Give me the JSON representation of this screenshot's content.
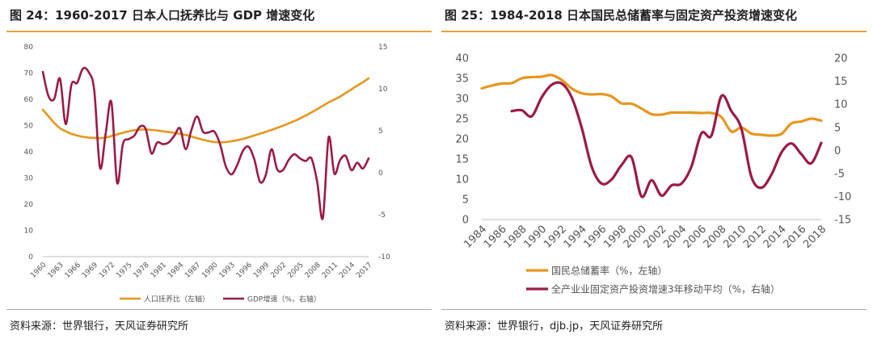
{
  "chart1": {
    "title": "图 24：1960-2017 日本人口抚养比与 GDP 增速变化",
    "source": "资料来源：世界银行，天风证券研究所",
    "chart_data": {
      "type": "line",
      "x": [
        1960,
        1961,
        1962,
        1963,
        1964,
        1965,
        1966,
        1967,
        1968,
        1969,
        1970,
        1971,
        1972,
        1973,
        1974,
        1975,
        1976,
        1977,
        1978,
        1979,
        1980,
        1981,
        1982,
        1983,
        1984,
        1985,
        1986,
        1987,
        1988,
        1989,
        1990,
        1991,
        1992,
        1993,
        1994,
        1995,
        1996,
        1997,
        1998,
        1999,
        2000,
        2001,
        2002,
        2003,
        2004,
        2005,
        2006,
        2007,
        2008,
        2009,
        2010,
        2011,
        2012,
        2013,
        2014,
        2015,
        2016,
        2017
      ],
      "x_tick_labels": [
        "1960",
        "1963",
        "1966",
        "1969",
        "1972",
        "1975",
        "1978",
        "1981",
        "1984",
        "1987",
        "1990",
        "1993",
        "1996",
        "1999",
        "2002",
        "2005",
        "2008",
        "2011",
        "2014",
        "2017"
      ],
      "series": [
        {
          "name": "人口抚养比（左轴）",
          "axis": "left",
          "color": "#e8961e",
          "values": [
            56,
            53.5,
            51,
            49,
            47.8,
            46.8,
            46.2,
            45.7,
            45.4,
            45.3,
            45.2,
            45.4,
            46,
            46.6,
            47.2,
            47.8,
            48.2,
            48.4,
            48.5,
            48.3,
            48.1,
            47.8,
            47.5,
            47.2,
            46.8,
            46.4,
            45.8,
            45.2,
            44.6,
            44.1,
            43.7,
            43.6,
            43.7,
            44,
            44.4,
            44.9,
            45.5,
            46.2,
            46.9,
            47.6,
            48.3,
            49.1,
            49.9,
            50.8,
            51.7,
            52.7,
            53.8,
            55,
            56.2,
            57.5,
            58.8,
            59.9,
            61,
            62.4,
            63.8,
            65.2,
            66.5,
            68
          ]
        },
        {
          "name": "GDP增速（%，右轴）",
          "axis": "right",
          "color": "#9b1b45",
          "values": [
            12,
            9.1,
            8.8,
            11.2,
            5.8,
            10.5,
            10.7,
            12.4,
            12,
            9.8,
            0.6,
            4.7,
            8.4,
            -1.2,
            3.4,
            4,
            4.4,
            5.5,
            5.2,
            2.3,
            3.6,
            3.4,
            3.6,
            4.4,
            5.3,
            2.8,
            5.1,
            6.7,
            4.9,
            4.8,
            4.9,
            3.4,
            0.8,
            -0.2,
            0.9,
            2.6,
            3.1,
            1.6,
            -1.1,
            -0.3,
            2.8,
            0.4,
            0.3,
            1.5,
            2.2,
            1.7,
            1.4,
            1.7,
            -1.1,
            -5.4,
            4.2,
            -0.1,
            1.5,
            2,
            0.3,
            1.2,
            0.5,
            1.7
          ]
        }
      ],
      "y_left": {
        "min": 0,
        "max": 80,
        "ticks": [
          0,
          10,
          20,
          30,
          40,
          50,
          60,
          70,
          80
        ]
      },
      "y_right": {
        "min": -10,
        "max": 15,
        "ticks": [
          -10,
          -5,
          0,
          5,
          10,
          15
        ]
      },
      "legend_placement": "bottom-center"
    }
  },
  "chart2": {
    "title": "图 25：1984-2018 日本国民总储蓄率与固定资产投资增速变化",
    "source": "资料来源：世界银行，djb.jp，天风证券研究所",
    "chart_data": {
      "type": "line",
      "x": [
        1984,
        1985,
        1986,
        1987,
        1988,
        1989,
        1990,
        1991,
        1992,
        1993,
        1994,
        1995,
        1996,
        1997,
        1998,
        1999,
        2000,
        2001,
        2002,
        2003,
        2004,
        2005,
        2006,
        2007,
        2008,
        2009,
        2010,
        2011,
        2012,
        2013,
        2014,
        2015,
        2016,
        2017,
        2018
      ],
      "x_tick_labels": [
        "1984",
        "1986",
        "1988",
        "1990",
        "1992",
        "1994",
        "1996",
        "1998",
        "2000",
        "2002",
        "2004",
        "2006",
        "2008",
        "2010",
        "2012",
        "2014",
        "2016",
        "2018"
      ],
      "series": [
        {
          "name": "国民总储蓄率（%，左轴）",
          "axis": "left",
          "color": "#e8961e",
          "values": [
            32.5,
            33.2,
            33.7,
            33.8,
            35,
            35.3,
            35.4,
            35.8,
            34.6,
            32.5,
            31.3,
            31,
            31.1,
            30.5,
            28.8,
            28.7,
            27.5,
            26.1,
            26,
            26.5,
            26.5,
            26.5,
            26.4,
            26.4,
            25.4,
            21.8,
            22.8,
            21.3,
            21,
            20.8,
            21.2,
            23.8,
            24.3,
            25,
            24.5
          ]
        },
        {
          "name": "全产业业固定资产投资增速3年移动平均（%，右轴）",
          "axis": "right",
          "color": "#9b1b45",
          "values": [
            null,
            null,
            null,
            8.5,
            8.7,
            7.4,
            11.5,
            14.2,
            14.5,
            11.5,
            5,
            -3.5,
            -7.2,
            -6.3,
            -3.2,
            -1.5,
            -10,
            -6.5,
            -9.8,
            -7.6,
            -7.2,
            -3.5,
            3.7,
            3.2,
            11.8,
            8.5,
            4.7,
            -5.7,
            -8.1,
            -5.3,
            -0.5,
            1.5,
            -0.8,
            -2.8,
            1.6
          ]
        }
      ],
      "y_left": {
        "min": 0,
        "max": 40,
        "ticks": [
          0,
          5,
          10,
          15,
          20,
          25,
          30,
          35,
          40
        ]
      },
      "y_right": {
        "min": -15,
        "max": 20,
        "ticks": [
          -15,
          -10,
          -5,
          0,
          5,
          10,
          15,
          20
        ]
      },
      "legend_placement": "bottom-left"
    }
  }
}
